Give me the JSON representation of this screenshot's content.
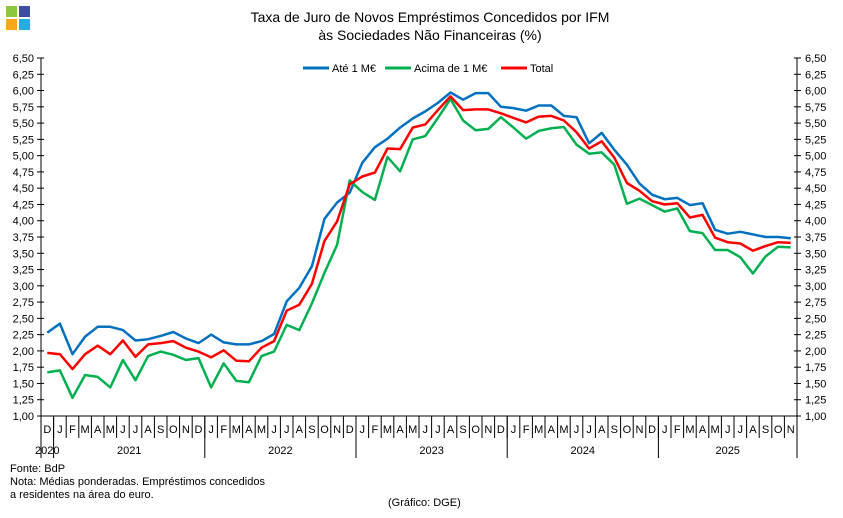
{
  "chart_data": {
    "type": "line",
    "title": [
      "Taxa de Juro de Novos Empréstimos Concedidos por IFM",
      "às Sociedades Não Financeiras (%)"
    ],
    "ylim": [
      1.0,
      6.5
    ],
    "ytick_step": 0.25,
    "yticks": [
      "1,00",
      "1,25",
      "1,50",
      "1,75",
      "2,00",
      "2,25",
      "2,50",
      "2,75",
      "3,00",
      "3,25",
      "3,50",
      "3,75",
      "4,00",
      "4,25",
      "4,50",
      "4,75",
      "5,00",
      "5,25",
      "5,50",
      "5,75",
      "6,00",
      "6,25",
      "6,50"
    ],
    "months": [
      "D",
      "J",
      "F",
      "M",
      "A",
      "M",
      "J",
      "J",
      "A",
      "S",
      "O",
      "N",
      "D",
      "J",
      "F",
      "M",
      "A",
      "M",
      "J",
      "J",
      "A",
      "S",
      "O",
      "N",
      "D",
      "J",
      "F",
      "M",
      "A",
      "M",
      "J",
      "J",
      "A",
      "S",
      "O",
      "N",
      "D",
      "J",
      "F",
      "M",
      "A",
      "M",
      "J",
      "J",
      "A",
      "S",
      "O",
      "N",
      "D",
      "J",
      "F",
      "M",
      "A",
      "M",
      "J",
      "J",
      "A",
      "S",
      "O",
      "N"
    ],
    "years": [
      {
        "label": "2020",
        "start": 0,
        "count": 1
      },
      {
        "label": "2021",
        "start": 1,
        "count": 12
      },
      {
        "label": "2022",
        "start": 13,
        "count": 12
      },
      {
        "label": "2023",
        "start": 25,
        "count": 12
      },
      {
        "label": "2024",
        "start": 37,
        "count": 12
      },
      {
        "label": "2025",
        "start": 49,
        "count": 11
      }
    ],
    "legend_position": "top-center",
    "series": [
      {
        "name": "Até 1 M€",
        "color": "#0070c0",
        "values": [
          2.28,
          2.42,
          1.95,
          2.22,
          2.37,
          2.37,
          2.32,
          2.16,
          2.18,
          2.23,
          2.29,
          2.19,
          2.12,
          2.25,
          2.13,
          2.1,
          2.1,
          2.15,
          2.26,
          2.76,
          2.97,
          3.3,
          4.03,
          4.28,
          4.43,
          4.89,
          5.13,
          5.26,
          5.43,
          5.57,
          5.68,
          5.81,
          5.97,
          5.86,
          5.96,
          5.96,
          5.75,
          5.73,
          5.69,
          5.77,
          5.77,
          5.61,
          5.59,
          5.19,
          5.35,
          5.09,
          4.86,
          4.57,
          4.4,
          4.33,
          4.35,
          4.24,
          4.27,
          3.86,
          3.8,
          3.83,
          3.79,
          3.75,
          3.75,
          3.73
        ]
      },
      {
        "name": "Acima de 1 M€",
        "color": "#00b050",
        "values": [
          1.67,
          1.7,
          1.28,
          1.63,
          1.6,
          1.44,
          1.86,
          1.55,
          1.92,
          1.99,
          1.94,
          1.86,
          1.89,
          1.44,
          1.81,
          1.54,
          1.52,
          1.92,
          1.99,
          2.4,
          2.32,
          2.73,
          3.2,
          3.63,
          4.62,
          4.44,
          4.32,
          4.98,
          4.76,
          5.25,
          5.3,
          5.58,
          5.87,
          5.54,
          5.39,
          5.41,
          5.59,
          5.43,
          5.26,
          5.38,
          5.42,
          5.44,
          5.17,
          5.03,
          5.05,
          4.86,
          4.26,
          4.34,
          4.24,
          4.14,
          4.19,
          3.84,
          3.81,
          3.55,
          3.55,
          3.44,
          3.19,
          3.45,
          3.6,
          3.59
        ]
      },
      {
        "name": "Total",
        "color": "#ff0000",
        "values": [
          1.97,
          1.95,
          1.72,
          1.95,
          2.08,
          1.95,
          2.16,
          1.91,
          2.1,
          2.12,
          2.15,
          2.05,
          1.99,
          1.9,
          2.01,
          1.85,
          1.84,
          2.05,
          2.15,
          2.62,
          2.71,
          3.03,
          3.69,
          3.99,
          4.56,
          4.68,
          4.74,
          5.11,
          5.1,
          5.43,
          5.48,
          5.7,
          5.91,
          5.7,
          5.71,
          5.71,
          5.65,
          5.58,
          5.51,
          5.6,
          5.61,
          5.54,
          5.36,
          5.11,
          5.22,
          4.97,
          4.58,
          4.46,
          4.3,
          4.25,
          4.27,
          4.05,
          4.09,
          3.74,
          3.67,
          3.65,
          3.54,
          3.61,
          3.67,
          3.66
        ]
      }
    ]
  },
  "footer": {
    "source": "Fonte: BdP",
    "note_line1": "Nota: Médias ponderadas. Empréstimos concedidos",
    "note_line2": "a residentes na área do euro.",
    "credit": "(Gráfico: DGE)"
  },
  "logo_colors": [
    "#8dc63f",
    "#3f4fa0",
    "#f7a81b",
    "#29abe2"
  ]
}
